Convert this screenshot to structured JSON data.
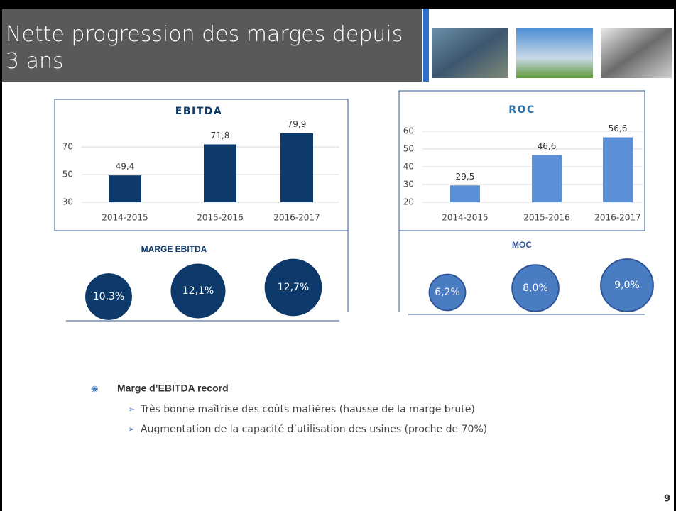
{
  "title": "Nette progression des marges depuis 3 ans",
  "chart_data": [
    {
      "type": "bar",
      "title": "EBITDA",
      "categories": [
        "2014-2015",
        "2015-2016",
        "2016-2017"
      ],
      "values": [
        49.4,
        71.8,
        79.9
      ],
      "value_labels": [
        "49,4",
        "71,8",
        "79,9"
      ],
      "color": "#0e3a6b",
      "ylim": [
        30,
        90
      ],
      "yticks": [
        30,
        50,
        70
      ],
      "grid": true
    },
    {
      "type": "bar",
      "title": "ROC",
      "categories": [
        "2014-2015",
        "2015-2016",
        "2016-2017"
      ],
      "values": [
        29.5,
        46.6,
        56.6
      ],
      "value_labels": [
        "29,5",
        "46,6",
        "56,6"
      ],
      "color": "#5b8fd6",
      "ylim": [
        20,
        60
      ],
      "yticks": [
        20,
        30,
        40,
        50,
        60
      ],
      "grid": true
    },
    {
      "type": "bubble",
      "title": "MARGE EBITDA",
      "values": [
        10.3,
        12.1,
        12.7
      ],
      "value_labels": [
        "10,3%",
        "12,1%",
        "12,7%"
      ],
      "color": "#0e3a6b"
    },
    {
      "type": "bubble",
      "title": "MOC",
      "values": [
        6.2,
        8.0,
        9.0
      ],
      "value_labels": [
        "6,2%",
        "8,0%",
        "9,0%"
      ],
      "color": "#4a7cc2"
    }
  ],
  "bullets": {
    "heading": "Marge d’EBITDA record",
    "items": [
      "Très bonne maîtrise des coûts matières (hausse de la marge brute)",
      "Augmentation de la capacité d’utilisation des usines (proche de 70%)"
    ]
  },
  "page_number": "9"
}
